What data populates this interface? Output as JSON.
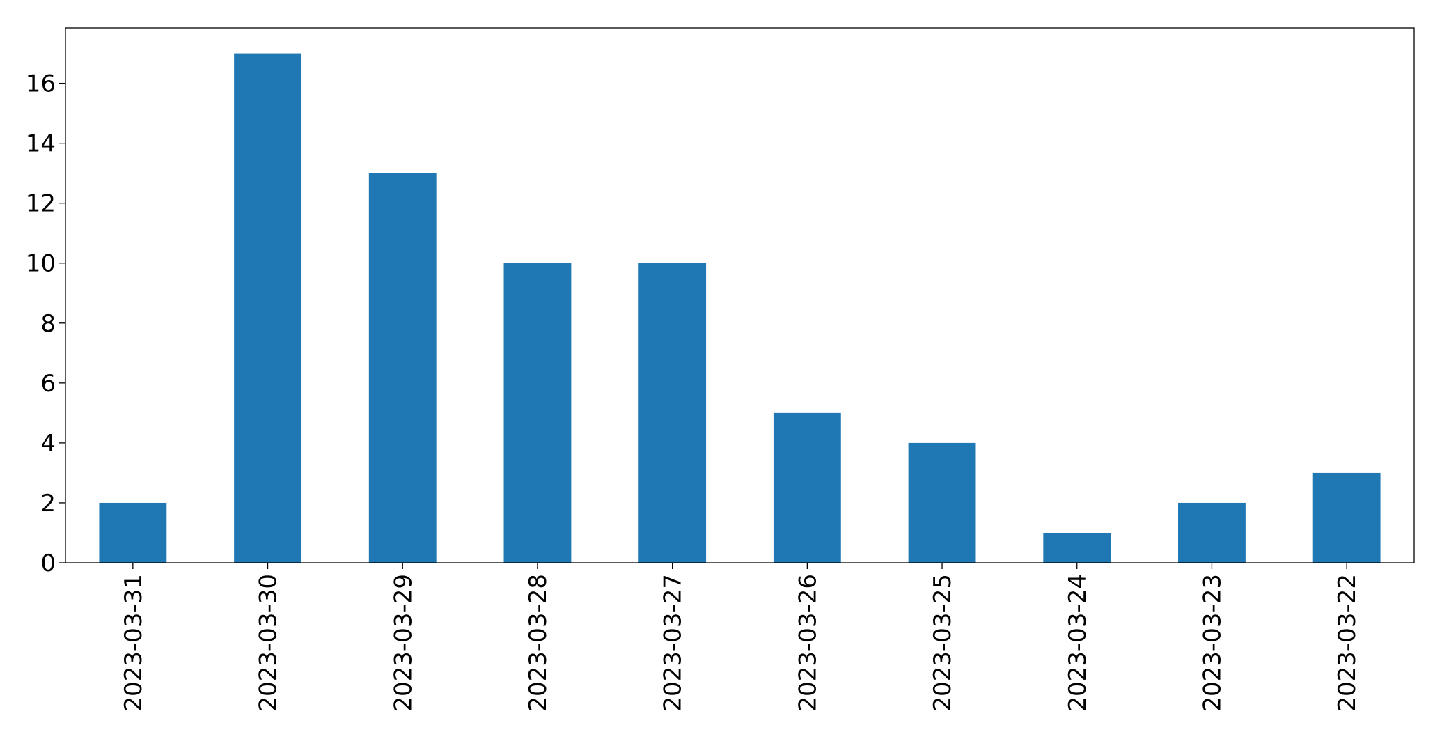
{
  "chart_data": {
    "type": "bar",
    "categories": [
      "2023-03-31",
      "2023-03-30",
      "2023-03-29",
      "2023-03-28",
      "2023-03-27",
      "2023-03-26",
      "2023-03-25",
      "2023-03-24",
      "2023-03-23",
      "2023-03-22"
    ],
    "values": [
      2,
      17,
      13,
      10,
      10,
      5,
      4,
      1,
      2,
      3
    ],
    "color": "#1f77b4",
    "ylim": [
      0,
      17.85
    ],
    "yticks": [
      0,
      2,
      4,
      6,
      8,
      10,
      12,
      14,
      16
    ],
    "grid": false
  }
}
